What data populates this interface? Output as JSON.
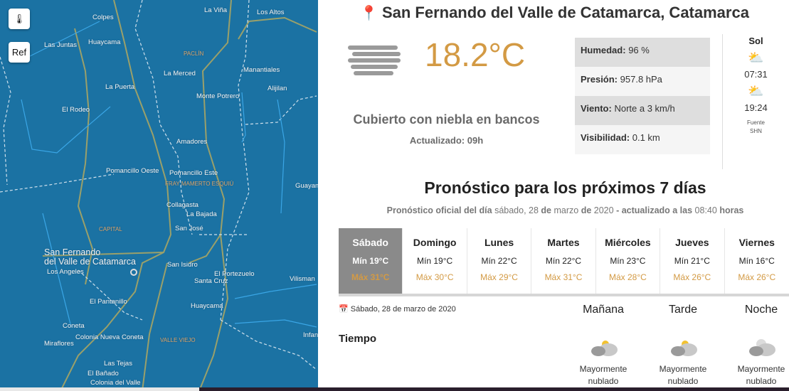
{
  "map": {
    "buttons": {
      "thermo_icon": "thermometer-icon",
      "ref_label": "Ref"
    },
    "labels": [
      "Colpes",
      "La Viña",
      "Los Altos",
      "Las Juntas",
      "Huaycama",
      "PACLÍN",
      "La Merced",
      "Manantiales",
      "La Puerta",
      "Alijilan",
      "Monte Potrero",
      "El Rodeo",
      "Amadores",
      "Pomancillo Oeste",
      "Pomancillo Este",
      "FRAY MAMERTO ESQUIÚ",
      "Guayam",
      "Collagasta",
      "La Bajada",
      "CAPITAL",
      "San José",
      "San Fernando del Valle de Catamarca",
      "San Isidro",
      "Los Angeles",
      "El Portezuelo",
      "Santa Cruz",
      "Vilisman",
      "El Pantanillo",
      "Huaycama",
      "Coneta",
      "Infan",
      "Colonia Nueva Coneta",
      "VALLE VIEJO",
      "Miraflores",
      "Las Tejas",
      "El Bañado",
      "Colonia del Valle"
    ],
    "city_line1": "San Fernando",
    "city_line2": "del Valle de Catamarca"
  },
  "header": {
    "location": "San Fernando del Valle de Catamarca, Catamarca",
    "pin_icon": "map-pin-icon"
  },
  "current": {
    "icon": "fog-icon",
    "temperature": "18.2°C",
    "condition": "Cubierto con niebla en bancos",
    "updated": "Actualizado: 09h",
    "temp_color": "#d39a44"
  },
  "details": [
    {
      "label": "Humedad:",
      "value": "96 %"
    },
    {
      "label": "Presión:",
      "value": "957.8 hPa"
    },
    {
      "label": "Viento:",
      "value": "Norte a 3 km/h"
    },
    {
      "label": "Visibilidad:",
      "value": "0.1 km"
    }
  ],
  "sun": {
    "title": "Sol",
    "sunrise": "07:31",
    "sunset": "19:24",
    "source1": "Fuente",
    "source2": "SHN"
  },
  "forecast": {
    "heading": "Pronóstico para los próximos 7 días",
    "sub": {
      "a": "Pronóstico oficial del día",
      "b": "sábado, 28",
      "c": "de",
      "d": "marzo",
      "e": "de",
      "f": "2020",
      "g": "- actualizado a las",
      "h": "08:40",
      "i": "horas"
    },
    "days": [
      {
        "name": "Sábado",
        "min": "Mín 19°C",
        "max": "Máx 31°C",
        "selected": true
      },
      {
        "name": "Domingo",
        "min": "Mín 19°C",
        "max": "Máx 30°C"
      },
      {
        "name": "Lunes",
        "min": "Mín 22°C",
        "max": "Máx 29°C"
      },
      {
        "name": "Martes",
        "min": "Mín 22°C",
        "max": "Máx 31°C"
      },
      {
        "name": "Miércoles",
        "min": "Mín 23°C",
        "max": "Máx 28°C"
      },
      {
        "name": "Jueves",
        "min": "Mín 21°C",
        "max": "Máx 26°C"
      },
      {
        "name": "Viernes",
        "min": "Mín 16°C",
        "max": "Máx 26°C"
      }
    ]
  },
  "detail": {
    "date": "Sábado, 28 de marzo de 2020",
    "row_label": "Tiempo",
    "periods": [
      {
        "name": "Mañana",
        "line1": "Mayormente",
        "line2": "nublado",
        "icon": "partly-cloudy-day-icon"
      },
      {
        "name": "Tarde",
        "line1": "Mayormente",
        "line2": "nublado",
        "icon": "partly-cloudy-day-icon"
      },
      {
        "name": "Noche",
        "line1": "Mayormente",
        "line2": "nublado",
        "icon": "partly-cloudy-night-icon"
      }
    ]
  }
}
